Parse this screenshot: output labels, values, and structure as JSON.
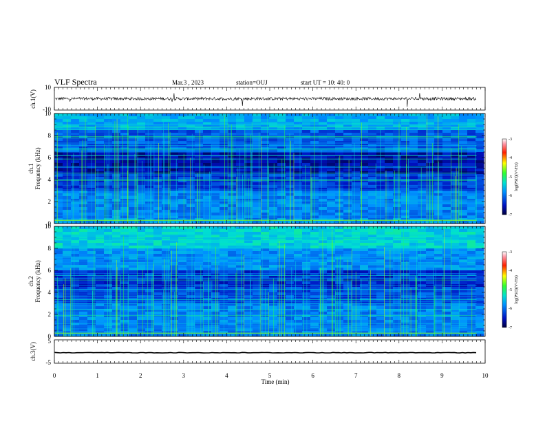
{
  "header": {
    "title": "VLF Spectra",
    "date": "Mar.3  , 2023",
    "station": "station=OUJ",
    "start": "start  UT =   10: 40: 0"
  },
  "chart_data": [
    {
      "type": "line",
      "panel": "ch1-waveform",
      "ylabel": "ch.1(V)",
      "ylim": [
        -10,
        10
      ],
      "yticks": [
        "10",
        "-10"
      ],
      "xlim": [
        0,
        10
      ],
      "series_level": 0.0
    },
    {
      "type": "heatmap",
      "panel": "ch1-spectrogram",
      "ylabel_lines": [
        "ch.1",
        "Frequency  (kHz)"
      ],
      "ylim": [
        0,
        10
      ],
      "yticks": [
        "0",
        "2",
        "4",
        "6",
        "8",
        "10"
      ],
      "xlim": [
        0,
        10
      ],
      "data_extent_min": 9.8,
      "colorbar": {
        "label": "log(PSD)(V²/Hz)",
        "ticks": [
          "-3",
          "-4",
          "-5",
          "-6",
          "-7"
        ],
        "range": [
          -7,
          -3
        ]
      }
    },
    {
      "type": "heatmap",
      "panel": "ch2-spectrogram",
      "ylabel_lines": [
        "ch.2",
        "Frequency  (kHz)"
      ],
      "ylim": [
        0,
        10
      ],
      "yticks": [
        "0",
        "2",
        "4",
        "6",
        "8",
        "10"
      ],
      "xlim": [
        0,
        10
      ],
      "data_extent_min": 9.8,
      "colorbar": {
        "label": "log(PSD)(V²/Hz)",
        "ticks": [
          "-3",
          "-4",
          "-5",
          "-6",
          "-7"
        ],
        "range": [
          -7,
          -3
        ]
      }
    },
    {
      "type": "line",
      "panel": "ch3-waveform",
      "ylabel": "ch.3(V)",
      "ylim": [
        -5,
        5
      ],
      "yticks": [
        "5",
        "-5"
      ],
      "xlim": [
        0,
        10
      ],
      "series_level": -0.5,
      "xlabel": "Time  (min)",
      "xticks": [
        "0",
        "1",
        "2",
        "3",
        "4",
        "5",
        "6",
        "7",
        "8",
        "9",
        "10"
      ]
    }
  ]
}
